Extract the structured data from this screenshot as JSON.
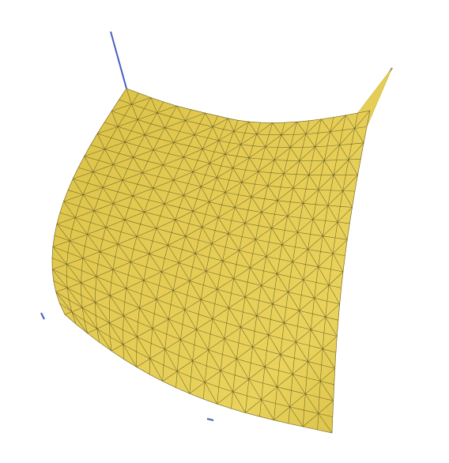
{
  "scene": {
    "background_color": "#ffffff",
    "surface_fill": "#e6cf55",
    "surface_shadow": "#c9b03a",
    "wire_color": "#5d531f",
    "pin_color": "#4a5cc0",
    "pinned_corners": [
      "top-left",
      "top-right"
    ]
  }
}
